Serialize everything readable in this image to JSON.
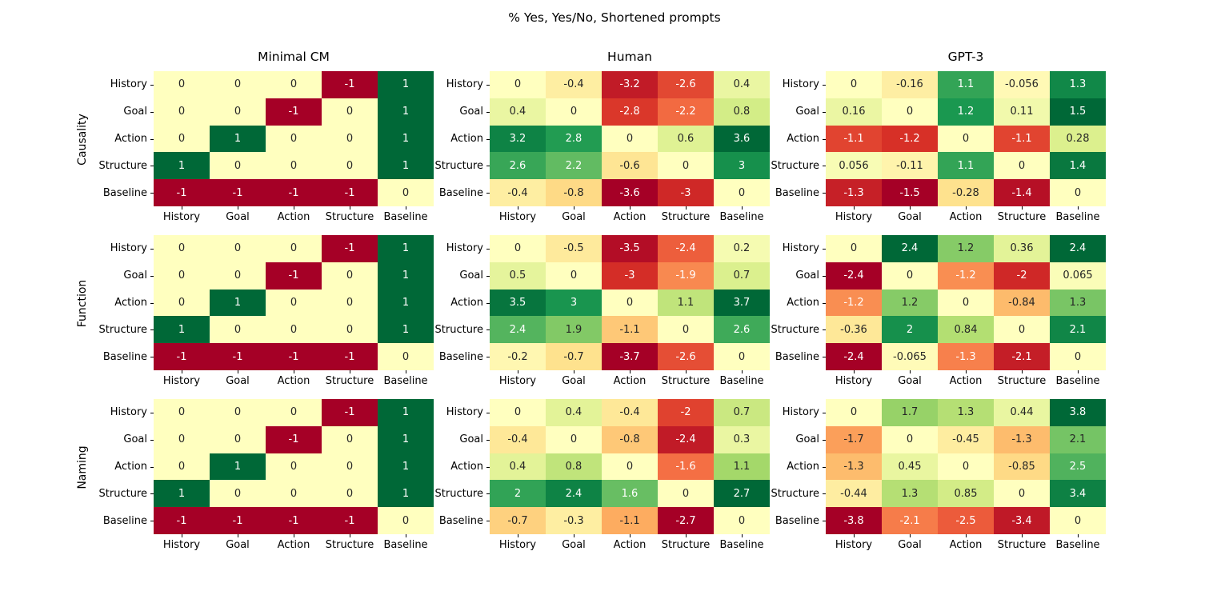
{
  "figure_title": "% Yes, Yes/No, Shortened prompts",
  "chart_data": {
    "type": "heatmap",
    "title": "% Yes, Yes/No, Shortened prompts",
    "layout": "3 rows x 3 columns of 5x5 annotated heatmaps",
    "colormap": "RdYlGn",
    "color_scale": "diverging, symmetric around 0, normalized per panel to its own max absolute value",
    "legend": "none",
    "grid": "off",
    "column_titles": [
      "Minimal CM",
      "Human",
      "GPT-3"
    ],
    "row_titles": [
      "Causality",
      "Function",
      "Naming"
    ],
    "x_labels": [
      "History",
      "Goal",
      "Action",
      "Structure",
      "Baseline"
    ],
    "y_labels": [
      "History",
      "Goal",
      "Action",
      "Structure",
      "Baseline"
    ],
    "panels": [
      {
        "row": "Causality",
        "column": "Minimal CM",
        "values": [
          [
            0,
            0,
            0,
            -1,
            1
          ],
          [
            0,
            0,
            -1,
            0,
            1
          ],
          [
            0,
            1,
            0,
            0,
            1
          ],
          [
            1,
            0,
            0,
            0,
            1
          ],
          [
            -1,
            -1,
            -1,
            -1,
            0
          ]
        ]
      },
      {
        "row": "Causality",
        "column": "Human",
        "values": [
          [
            0,
            -0.4,
            -3.2,
            -2.6,
            0.4
          ],
          [
            0.4,
            0,
            -2.8,
            -2.2,
            0.8
          ],
          [
            3.2,
            2.8,
            0,
            0.6,
            3.6
          ],
          [
            2.6,
            2.2,
            -0.6,
            0,
            3
          ],
          [
            -0.4,
            -0.8,
            -3.6,
            -3,
            0
          ]
        ]
      },
      {
        "row": "Causality",
        "column": "GPT-3",
        "values": [
          [
            0,
            -0.16,
            1.1,
            -0.056,
            1.3
          ],
          [
            0.16,
            0,
            1.2,
            0.11,
            1.5
          ],
          [
            -1.1,
            -1.2,
            0,
            -1.1,
            0.28
          ],
          [
            0.056,
            -0.11,
            1.1,
            0,
            1.4
          ],
          [
            -1.3,
            -1.5,
            -0.28,
            -1.4,
            0
          ]
        ]
      },
      {
        "row": "Function",
        "column": "Minimal CM",
        "values": [
          [
            0,
            0,
            0,
            -1,
            1
          ],
          [
            0,
            0,
            -1,
            0,
            1
          ],
          [
            0,
            1,
            0,
            0,
            1
          ],
          [
            1,
            0,
            0,
            0,
            1
          ],
          [
            -1,
            -1,
            -1,
            -1,
            0
          ]
        ]
      },
      {
        "row": "Function",
        "column": "Human",
        "values": [
          [
            0,
            -0.5,
            -3.5,
            -2.4,
            0.2
          ],
          [
            0.5,
            0,
            -3,
            -1.9,
            0.7
          ],
          [
            3.5,
            3,
            0,
            1.1,
            3.7
          ],
          [
            2.4,
            1.9,
            -1.1,
            0,
            2.6
          ],
          [
            -0.2,
            -0.7,
            -3.7,
            -2.6,
            0
          ]
        ]
      },
      {
        "row": "Function",
        "column": "GPT-3",
        "values": [
          [
            0,
            2.4,
            1.2,
            0.36,
            2.4
          ],
          [
            -2.4,
            0,
            -1.2,
            -2,
            0.065
          ],
          [
            -1.2,
            1.2,
            0,
            -0.84,
            1.3
          ],
          [
            -0.36,
            2,
            0.84,
            0,
            2.1
          ],
          [
            -2.4,
            -0.065,
            -1.3,
            -2.1,
            0
          ]
        ]
      },
      {
        "row": "Naming",
        "column": "Minimal CM",
        "values": [
          [
            0,
            0,
            0,
            -1,
            1
          ],
          [
            0,
            0,
            -1,
            0,
            1
          ],
          [
            0,
            1,
            0,
            0,
            1
          ],
          [
            1,
            0,
            0,
            0,
            1
          ],
          [
            -1,
            -1,
            -1,
            -1,
            0
          ]
        ]
      },
      {
        "row": "Naming",
        "column": "Human",
        "values": [
          [
            0,
            0.4,
            -0.4,
            -2,
            0.7
          ],
          [
            -0.4,
            0,
            -0.8,
            -2.4,
            0.3
          ],
          [
            0.4,
            0.8,
            0,
            -1.6,
            1.1
          ],
          [
            2,
            2.4,
            1.6,
            0,
            2.7
          ],
          [
            -0.7,
            -0.3,
            -1.1,
            -2.7,
            0
          ]
        ]
      },
      {
        "row": "Naming",
        "column": "GPT-3",
        "values": [
          [
            0,
            1.7,
            1.3,
            0.44,
            3.8
          ],
          [
            -1.7,
            0,
            -0.45,
            -1.3,
            2.1
          ],
          [
            -1.3,
            0.45,
            0,
            -0.85,
            2.5
          ],
          [
            -0.44,
            1.3,
            0.85,
            0,
            3.4
          ],
          [
            -3.8,
            -2.1,
            -2.5,
            -3.4,
            0
          ]
        ]
      }
    ],
    "colors": {
      "negative_extreme": "#a50026",
      "zero": "#ffffbf",
      "positive_extreme": "#006837",
      "annotation_dark": "#262626",
      "annotation_light": "#ffffff",
      "background": "#ffffff"
    }
  }
}
